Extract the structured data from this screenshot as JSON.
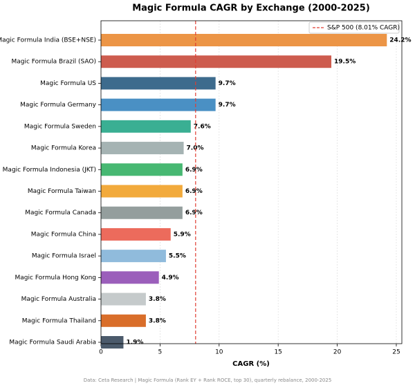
{
  "chart_data": {
    "type": "bar",
    "orientation": "horizontal",
    "title": "Magic Formula CAGR by Exchange (2000-2025)",
    "xlabel": "CAGR (%)",
    "categories": [
      "Magic Formula India (BSE+NSE)",
      "Magic Formula Brazil (SAO)",
      "Magic Formula US",
      "Magic Formula Germany",
      "Magic Formula Sweden",
      "Magic Formula Korea",
      "Magic Formula Indonesia (JKT)",
      "Magic Formula Taiwan",
      "Magic Formula Canada",
      "Magic Formula China",
      "Magic Formula Israel",
      "Magic Formula Hong Kong",
      "Magic Formula Australia",
      "Magic Formula Thailand",
      "Magic Formula Saudi Arabia"
    ],
    "values": [
      24.2,
      19.5,
      9.7,
      9.7,
      7.6,
      7.0,
      6.9,
      6.9,
      6.9,
      5.9,
      5.5,
      4.9,
      3.8,
      3.8,
      1.9
    ],
    "value_labels": [
      "24.2%",
      "19.5%",
      "9.7%",
      "9.7%",
      "7.6%",
      "7.0%",
      "6.9%",
      "6.9%",
      "6.9%",
      "5.9%",
      "5.5%",
      "4.9%",
      "3.8%",
      "3.8%",
      "1.9%"
    ],
    "colors": [
      "#ec9546",
      "#cd5c4e",
      "#3d6b8d",
      "#4a90c4",
      "#3aaf93",
      "#a5b3b3",
      "#47b872",
      "#f2aa3c",
      "#949e9d",
      "#ec6b5c",
      "#90bbdc",
      "#9b5fbb",
      "#c5cacb",
      "#d96e2a",
      "#4b5a6b"
    ],
    "reference_line": {
      "name": "S&P 500 (8.01% CAGR)",
      "value": 8.01,
      "color": "#e03c31"
    },
    "legend": "upper right",
    "grid": true,
    "xlim": [
      0,
      25.47
    ],
    "xticks": [
      0,
      5,
      10,
      15,
      20,
      25
    ],
    "footnote": "Data: Ceta Research | Magic Formula (Rank EY + Rank ROCE, top 30), quarterly rebalance, 2000-2025"
  }
}
